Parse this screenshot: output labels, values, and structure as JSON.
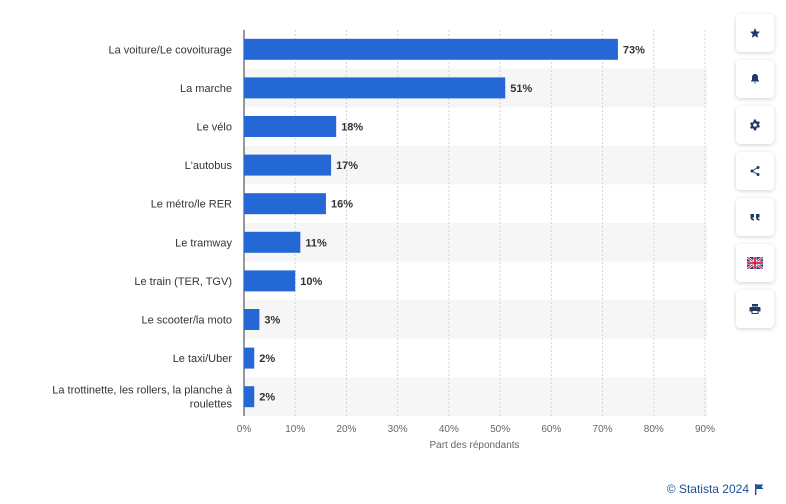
{
  "chart_data": {
    "type": "bar",
    "orientation": "horizontal",
    "categories": [
      "La voiture/Le covoiturage",
      "La marche",
      "Le vélo",
      "L'autobus",
      "Le métro/le RER",
      "Le tramway",
      "Le train (TER, TGV)",
      "Le scooter/la moto",
      "Le taxi/Uber",
      "La trottinette, les rollers, la planche à roulettes"
    ],
    "values": [
      73,
      51,
      18,
      17,
      16,
      11,
      10,
      3,
      2,
      2
    ],
    "value_labels": [
      "73%",
      "51%",
      "18%",
      "17%",
      "16%",
      "11%",
      "10%",
      "3%",
      "2%",
      "2%"
    ],
    "x_ticks": [
      "0%",
      "10%",
      "20%",
      "30%",
      "40%",
      "50%",
      "60%",
      "70%",
      "80%",
      "90%"
    ],
    "xlim": [
      0,
      90
    ],
    "xlabel": "Part des répondants",
    "ylabel": "",
    "grid": true,
    "bar_color": "#2468d6",
    "stripe_color": "#f6f6f6"
  },
  "toolbar": {
    "buttons": [
      {
        "name": "favorite-button",
        "icon": "star-icon"
      },
      {
        "name": "notification-button",
        "icon": "bell-icon"
      },
      {
        "name": "settings-button",
        "icon": "gear-icon"
      },
      {
        "name": "share-button",
        "icon": "share-icon"
      },
      {
        "name": "cite-button",
        "icon": "quote-icon"
      },
      {
        "name": "language-button",
        "icon": "uk-flag-icon"
      },
      {
        "name": "print-button",
        "icon": "printer-icon"
      }
    ]
  },
  "footer": {
    "credit": "© Statista 2024"
  }
}
